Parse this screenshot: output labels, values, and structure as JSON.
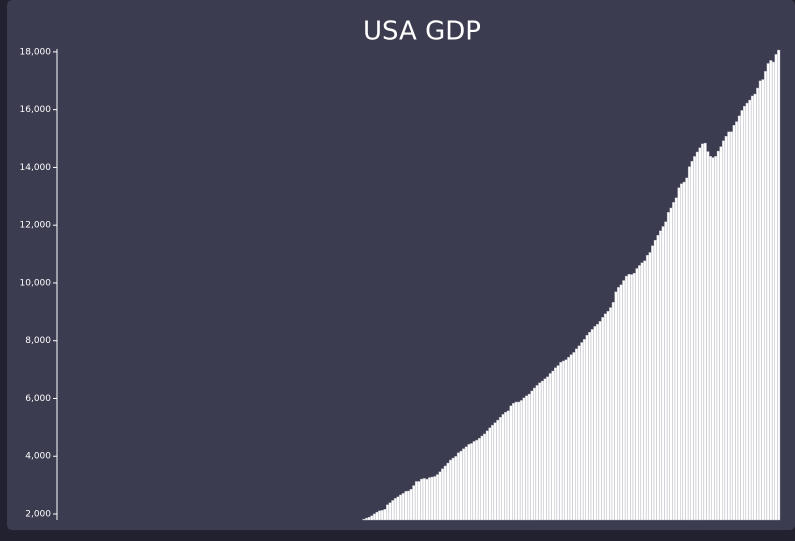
{
  "chart_data": {
    "type": "bar",
    "title": "USA GDP",
    "color": "#ffffff",
    "values": [
      1823,
      1856,
      1890,
      1938,
      2004,
      2064,
      2110,
      2129,
      2164,
      2322,
      2390,
      2470,
      2542,
      2595,
      2662,
      2716,
      2789,
      2797,
      2857,
      2986,
      3126,
      3129,
      3211,
      3231,
      3207,
      3262,
      3281,
      3300,
      3367,
      3463,
      3570,
      3664,
      3765,
      3868,
      3937,
      3995,
      4119,
      4178,
      4262,
      4331,
      4412,
      4442,
      4513,
      4558,
      4622,
      4702,
      4774,
      4880,
      4985,
      5077,
      5162,
      5252,
      5351,
      5450,
      5526,
      5574,
      5747,
      5835,
      5877,
      5879,
      5931,
      6020,
      6091,
      6153,
      6261,
      6363,
      6453,
      6543,
      6604,
      6684,
      6754,
      6866,
      6952,
      7065,
      7140,
      7257,
      7298,
      7343,
      7430,
      7519,
      7595,
      7720,
      7823,
      7939,
      8048,
      8189,
      8295,
      8392,
      8496,
      8572,
      8669,
      8809,
      8932,
      9020,
      9149,
      9329,
      9695,
      9847,
      9937,
      10086,
      10237,
      10302,
      10292,
      10339,
      10501,
      10605,
      10701,
      10766,
      10959,
      11056,
      11291,
      11480,
      11650,
      11806,
      11956,
      12122,
      12446,
      12596,
      12791,
      12950,
      13300,
      13434,
      13493,
      13637,
      14028,
      14212,
      14381,
      14535,
      14681,
      14815,
      14843,
      14550,
      14383,
      14341,
      14384,
      14566,
      14721,
      14926,
      15080,
      15231,
      15238,
      15461,
      15587,
      15785,
      15973,
      16122,
      16228,
      16332,
      16475,
      16541,
      16750,
      16999,
      17044,
      17327,
      17600,
      17704,
      17650,
      17913,
      18064
    ],
    "ylim": [
      1792,
      18100
    ],
    "yticks": [
      {
        "value": 2000,
        "label": "2,000"
      },
      {
        "value": 4000,
        "label": "4,000"
      },
      {
        "value": 6000,
        "label": "6,000"
      },
      {
        "value": 8000,
        "label": "8,000"
      },
      {
        "value": 10000,
        "label": "10,000"
      },
      {
        "value": 12000,
        "label": "12,000"
      },
      {
        "value": 14000,
        "label": "14,000"
      },
      {
        "value": 16000,
        "label": "16,000"
      },
      {
        "value": 18000,
        "label": "18,000"
      }
    ]
  }
}
